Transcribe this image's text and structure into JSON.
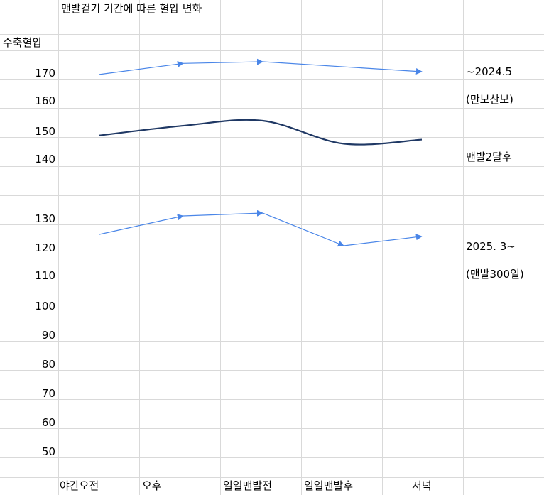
{
  "colors": {
    "grid": "#d9d9d9",
    "series_top": "#4a86e8",
    "series_middle": "#1f3864",
    "series_bottom": "#4a86e8"
  },
  "chart_data": {
    "type": "line",
    "title": "맨발걷기  기간에 따른  혈압 변화",
    "ylabel": "수축혈압",
    "xlabel": "",
    "categories": [
      "야간오전",
      "오후",
      "일일맨발전",
      "일일맨발후",
      "저녁"
    ],
    "y_ticks": [
      "170",
      "160",
      "150",
      "140",
      "130",
      "120",
      "110",
      "100",
      "90",
      "80",
      "70",
      "60",
      "50"
    ],
    "grid": true,
    "series": [
      {
        "name": "~2024.5",
        "subname": "(만보산보)",
        "style": "straight-arrows",
        "x": [
          0,
          1,
          2,
          4
        ],
        "values": [
          169,
          173,
          173.6,
          170
        ]
      },
      {
        "name": "맨발2달후",
        "subname": "",
        "style": "smooth",
        "x": [
          0,
          1,
          2,
          3,
          4
        ],
        "values": [
          147,
          150.5,
          152.3,
          144,
          145.5
        ]
      },
      {
        "name": "2025. 3~",
        "subname": "(맨발300일)",
        "style": "straight-arrows",
        "x": [
          0,
          1,
          2,
          3,
          4
        ],
        "values": [
          124.5,
          131,
          132,
          120.5,
          123.8
        ]
      }
    ]
  }
}
